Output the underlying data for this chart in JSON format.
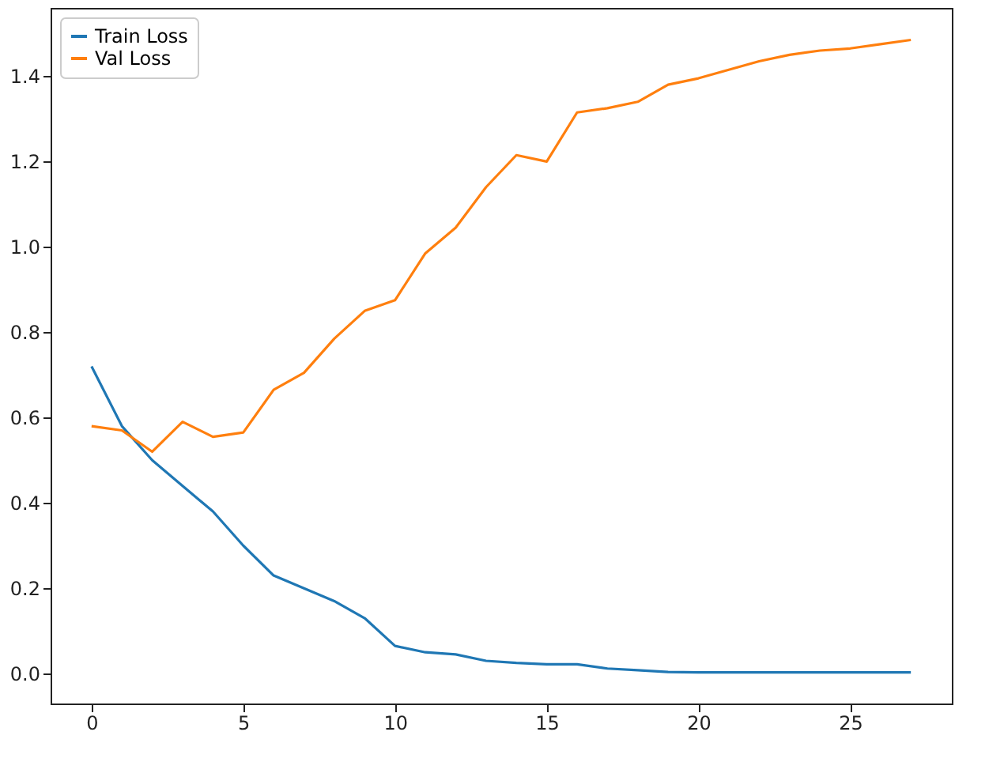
{
  "chart_data": {
    "type": "line",
    "x": [
      0,
      1,
      2,
      3,
      4,
      5,
      6,
      7,
      8,
      9,
      10,
      11,
      12,
      13,
      14,
      15,
      16,
      17,
      18,
      19,
      20,
      21,
      22,
      23,
      24,
      25,
      26,
      27
    ],
    "series": [
      {
        "name": "Train Loss",
        "color": "#1f77b4",
        "values": [
          0.72,
          0.58,
          0.5,
          0.44,
          0.38,
          0.3,
          0.23,
          0.2,
          0.17,
          0.13,
          0.065,
          0.05,
          0.045,
          0.03,
          0.025,
          0.022,
          0.022,
          0.012,
          0.008,
          0.004,
          0.003,
          0.003,
          0.003,
          0.003,
          0.003,
          0.003,
          0.003,
          0.003
        ]
      },
      {
        "name": "Val Loss",
        "color": "#ff7f0e",
        "values": [
          0.58,
          0.57,
          0.52,
          0.59,
          0.555,
          0.565,
          0.665,
          0.705,
          0.785,
          0.85,
          0.875,
          0.985,
          1.045,
          1.14,
          1.215,
          1.2,
          1.315,
          1.325,
          1.34,
          1.38,
          1.395,
          1.415,
          1.435,
          1.45,
          1.46,
          1.465,
          1.475,
          1.485
        ]
      }
    ],
    "xlim": [
      -1.35,
      28.35
    ],
    "xticks": [
      0,
      5,
      10,
      15,
      20,
      25
    ],
    "ylim": [
      -0.07,
      1.56
    ],
    "yticks": [
      {
        "value": 0,
        "label": "0.0"
      },
      {
        "value": 0.2,
        "label": "0.2"
      },
      {
        "value": 0.4,
        "label": "0.4"
      },
      {
        "value": 0.6,
        "label": "0.6"
      },
      {
        "value": 0.8,
        "label": "0.8"
      },
      {
        "value": 1.0,
        "label": "1.0"
      },
      {
        "value": 1.2,
        "label": "1.2"
      },
      {
        "value": 1.4,
        "label": "1.4"
      }
    ],
    "grid": false,
    "legend": "top left",
    "marker": "none",
    "line_style": "solid"
  }
}
